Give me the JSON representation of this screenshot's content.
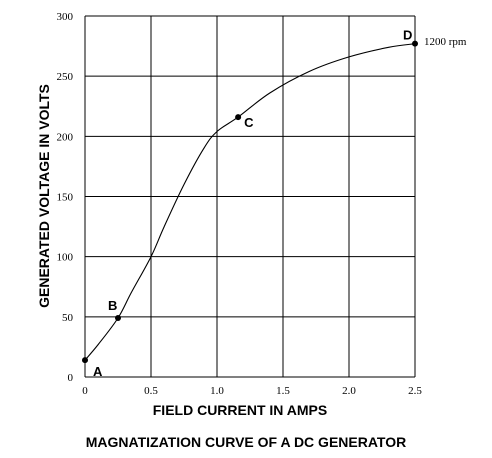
{
  "chart_data": {
    "type": "line",
    "title": "MAGNATIZATION CURVE OF A DC GENERATOR",
    "xlabel": "FIELD CURRENT IN AMPS",
    "ylabel": "GENERATED VOLTAGE IN VOLTS",
    "xlim": [
      0,
      2.5
    ],
    "ylim": [
      0,
      300
    ],
    "x_ticks": [
      "0",
      "0.5",
      "1.0",
      "1.5",
      "2.0",
      "2.5"
    ],
    "y_ticks": [
      "0",
      "50",
      "100",
      "150",
      "200",
      "250",
      "300"
    ],
    "grid": true,
    "series": [
      {
        "name": "1200 rpm",
        "x": [
          0,
          0.1,
          0.25,
          0.35,
          0.5,
          0.6,
          0.75,
          0.9,
          1.0,
          1.16,
          1.4,
          1.7,
          2.0,
          2.3,
          2.5
        ],
        "y": [
          14,
          27,
          49,
          70,
          100,
          125,
          160,
          190,
          204,
          216,
          236,
          254,
          266,
          274,
          277
        ]
      }
    ],
    "points": [
      {
        "label": "A",
        "x": 0,
        "y": 14
      },
      {
        "label": "B",
        "x": 0.25,
        "y": 49
      },
      {
        "label": "C",
        "x": 1.16,
        "y": 216
      },
      {
        "label": "D",
        "x": 2.5,
        "y": 277
      }
    ],
    "annotations": [
      {
        "text": "1200 rpm"
      }
    ]
  }
}
